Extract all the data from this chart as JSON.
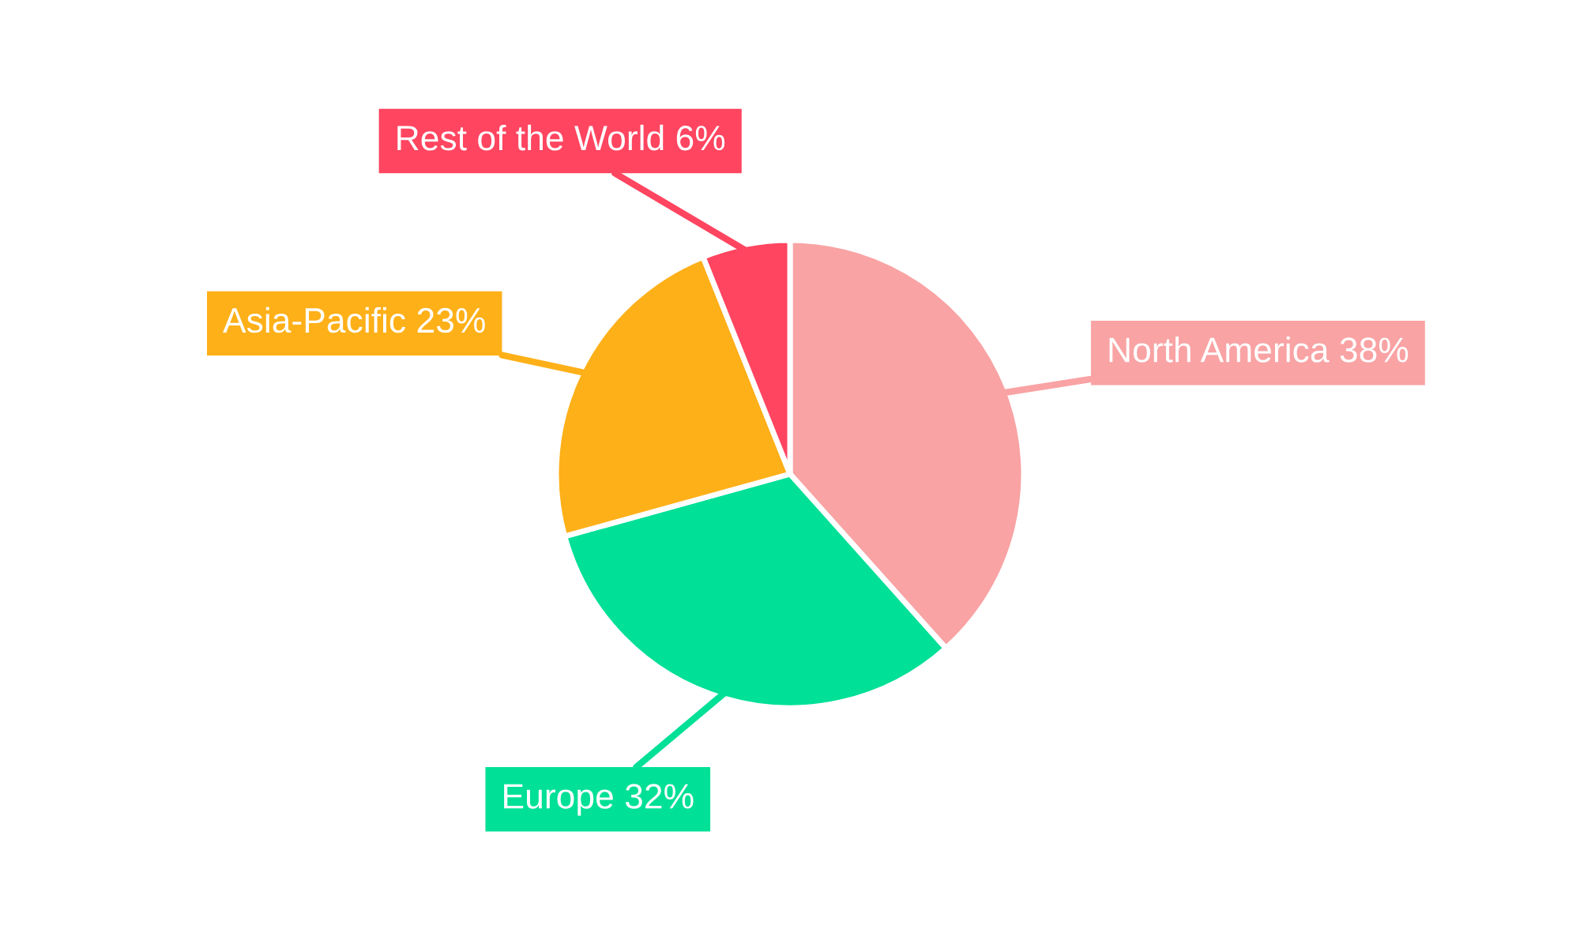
{
  "chart_data": {
    "type": "pie",
    "categories": [
      "North America",
      "Europe",
      "Asia-Pacific",
      "Rest of the World"
    ],
    "values": [
      38,
      32,
      23,
      6
    ],
    "value_labels": [
      "38%",
      "32%",
      "23%",
      "6%"
    ],
    "colors": [
      "#f9a3a4",
      "#00e096",
      "#feb019",
      "#ff4560"
    ],
    "legend": false
  }
}
